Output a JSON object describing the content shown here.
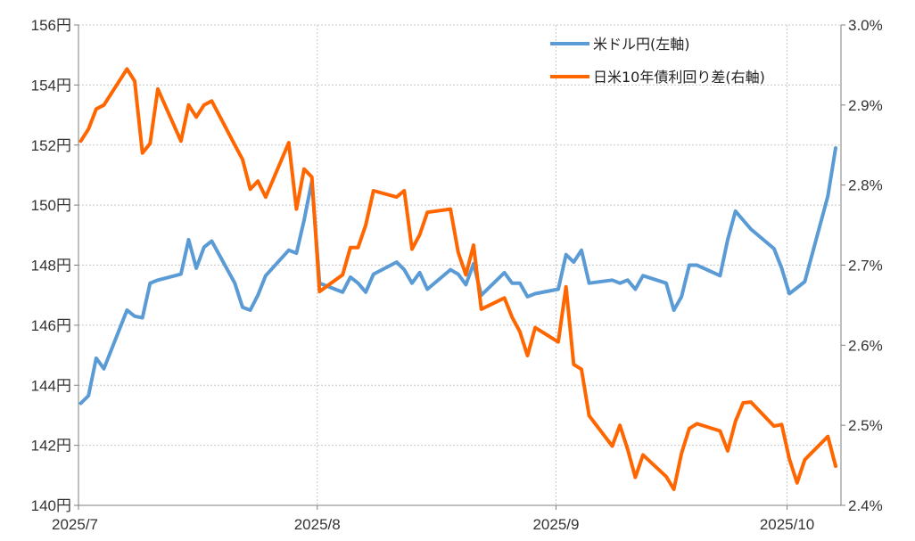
{
  "chart_data": {
    "type": "line",
    "title": "",
    "xlabel": "",
    "ylabel": "",
    "grid": true,
    "legend_position": "top-right",
    "x_ticks": [
      {
        "label": "2025/7",
        "day": 0
      },
      {
        "label": "2025/8",
        "day": 31
      },
      {
        "label": "2025/9",
        "day": 62
      },
      {
        "label": "2025/10",
        "day": 92
      }
    ],
    "xlim": [
      0,
      99
    ],
    "y_left": {
      "ylim": [
        140,
        156
      ],
      "ticks": [
        {
          "value": 140,
          "label": "140円"
        },
        {
          "value": 142,
          "label": "142円"
        },
        {
          "value": 144,
          "label": "144円"
        },
        {
          "value": 146,
          "label": "146円"
        },
        {
          "value": 148,
          "label": "148円"
        },
        {
          "value": 150,
          "label": "150円"
        },
        {
          "value": 152,
          "label": "152円"
        },
        {
          "value": 154,
          "label": "154円"
        },
        {
          "value": 156,
          "label": "156円"
        }
      ]
    },
    "y_right": {
      "ylim": [
        2.4,
        3.0
      ],
      "ticks": [
        {
          "value": 2.4,
          "label": "2.4%"
        },
        {
          "value": 2.5,
          "label": "2.5%"
        },
        {
          "value": 2.6,
          "label": "2.6%"
        },
        {
          "value": 2.7,
          "label": "2.7%"
        },
        {
          "value": 2.8,
          "label": "2.8%"
        },
        {
          "value": 2.9,
          "label": "2.9%"
        },
        {
          "value": 3.0,
          "label": "3.0%"
        }
      ]
    },
    "series": [
      {
        "name": "米ドル円(左軸)",
        "axis": "left",
        "color": "#5b9bd5",
        "x": [
          0.3,
          1.3,
          2.3,
          3.3,
          6.3,
          7.3,
          8.3,
          9.3,
          10.3,
          13.3,
          14.3,
          15.3,
          16.3,
          17.3,
          20.3,
          21.3,
          22.3,
          23.3,
          24.3,
          27.3,
          28.3,
          29.3,
          30.3,
          31.3,
          34.3,
          35.3,
          36.3,
          37.3,
          38.3,
          41.3,
          42.3,
          43.3,
          44.3,
          45.3,
          48.3,
          49.3,
          50.3,
          51.3,
          52.3,
          55.3,
          56.3,
          57.3,
          58.3,
          59.3,
          62.3,
          63.3,
          64.3,
          65.3,
          66.3,
          69.3,
          70.3,
          71.3,
          72.3,
          73.3,
          76.3,
          77.3,
          78.3,
          79.3,
          80.3,
          83.3,
          84.3,
          85.3,
          86.3,
          87.3,
          90.3,
          91.3,
          92.3,
          93.3,
          94.3,
          97.3,
          98.3
        ],
        "values": [
          143.4,
          143.65,
          144.9,
          144.55,
          146.5,
          146.3,
          146.25,
          147.4,
          147.5,
          147.7,
          148.85,
          147.9,
          148.6,
          148.8,
          147.4,
          146.6,
          146.5,
          147,
          147.65,
          148.5,
          148.4,
          149.5,
          150.8,
          147.4,
          147.1,
          147.6,
          147.4,
          147.1,
          147.7,
          148.1,
          147.85,
          147.4,
          147.75,
          147.2,
          147.85,
          147.7,
          147.35,
          148.05,
          147.0,
          147.75,
          147.4,
          147.4,
          146.95,
          147.05,
          147.2,
          148.35,
          148.1,
          148.5,
          147.4,
          147.5,
          147.4,
          147.5,
          147.2,
          147.65,
          147.4,
          146.5,
          146.95,
          148.0,
          148.0,
          147.65,
          148.85,
          149.8,
          149.5,
          149.2,
          148.55,
          147.9,
          147.05,
          147.25,
          147.45,
          150.3,
          151.9
        ]
      },
      {
        "name": "日米10年債利回り差(右軸)",
        "axis": "right",
        "color": "#ff6600",
        "x": [
          0.3,
          1.3,
          2.3,
          3.3,
          6.3,
          7.3,
          8.3,
          9.3,
          10.3,
          13.3,
          14.3,
          15.3,
          16.3,
          17.3,
          20.3,
          21.3,
          22.3,
          23.3,
          24.3,
          27.3,
          28.3,
          29.3,
          30.3,
          31.3,
          34.3,
          35.3,
          36.3,
          37.3,
          38.3,
          41.3,
          42.3,
          43.3,
          44.3,
          45.3,
          48.3,
          49.3,
          50.3,
          51.3,
          52.3,
          55.3,
          56.3,
          57.3,
          58.3,
          59.3,
          62.3,
          63.3,
          64.3,
          65.3,
          66.3,
          69.3,
          70.3,
          71.3,
          72.3,
          73.3,
          76.3,
          77.3,
          78.3,
          79.3,
          80.3,
          83.3,
          84.3,
          85.3,
          86.3,
          87.3,
          90.3,
          91.3,
          92.3,
          93.3,
          94.3,
          97.3,
          98.3
        ],
        "values": [
          2.855,
          2.87,
          2.895,
          2.9,
          2.945,
          2.93,
          2.84,
          2.852,
          2.92,
          2.855,
          2.9,
          2.885,
          2.9,
          2.905,
          2.85,
          2.832,
          2.795,
          2.805,
          2.785,
          2.853,
          2.77,
          2.82,
          2.81,
          2.667,
          2.688,
          2.722,
          2.722,
          2.75,
          2.793,
          2.785,
          2.793,
          2.72,
          2.738,
          2.766,
          2.77,
          2.716,
          2.688,
          2.725,
          2.645,
          2.659,
          2.635,
          2.617,
          2.587,
          2.622,
          2.604,
          2.673,
          2.576,
          2.57,
          2.512,
          2.474,
          2.5,
          2.47,
          2.435,
          2.463,
          2.436,
          2.42,
          2.465,
          2.496,
          2.502,
          2.493,
          2.468,
          2.505,
          2.528,
          2.529,
          2.499,
          2.501,
          2.458,
          2.428,
          2.457,
          2.486,
          2.449
        ]
      }
    ],
    "legend": [
      {
        "label": "米ドル円(左軸)",
        "color": "#5b9bd5"
      },
      {
        "label": "日米10年債利回り差(右軸)",
        "color": "#ff6600"
      }
    ]
  }
}
